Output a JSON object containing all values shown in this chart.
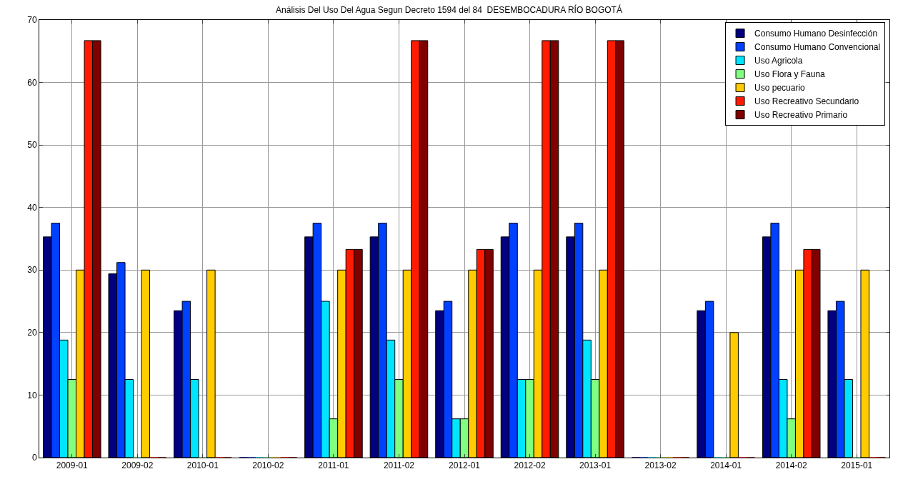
{
  "chart_data": {
    "type": "bar",
    "title": "Análisis Del Uso Del Agua Segun Decreto 1594 del 84  DESEMBOCADURA RÍO BOGOTÁ",
    "categories": [
      "2009-01",
      "2009-02",
      "2010-01",
      "2010-02",
      "2011-01",
      "2011-02",
      "2012-01",
      "2012-02",
      "2013-01",
      "2013-02",
      "2014-01",
      "2014-02",
      "2015-01"
    ],
    "series": [
      {
        "name": "Consumo Humano Desinfección",
        "color": "#000080",
        "values": [
          35.3,
          29.4,
          23.5,
          0,
          35.3,
          35.3,
          23.5,
          35.3,
          35.3,
          0,
          23.5,
          35.3,
          23.5
        ]
      },
      {
        "name": "Consumo Humano Convencional",
        "color": "#0040ff",
        "values": [
          37.5,
          31.2,
          25,
          0,
          37.5,
          37.5,
          25,
          37.5,
          37.5,
          0,
          25,
          37.5,
          25
        ]
      },
      {
        "name": "Uso Agricola",
        "color": "#00e5ff",
        "values": [
          18.8,
          12.5,
          12.5,
          0,
          25,
          18.8,
          6.2,
          12.5,
          18.8,
          0,
          0,
          12.5,
          12.5
        ]
      },
      {
        "name": "Uso Flora y Fauna",
        "color": "#80ff80",
        "values": [
          12.5,
          0,
          0,
          0,
          6.2,
          12.5,
          6.2,
          12.5,
          12.5,
          0,
          0,
          6.2,
          0
        ]
      },
      {
        "name": "Uso pecuario",
        "color": "#ffcc00",
        "values": [
          30,
          30,
          30,
          0,
          30,
          30,
          30,
          30,
          30,
          0,
          20,
          30,
          30
        ]
      },
      {
        "name": "Uso Recreativo Secundario",
        "color": "#ff1a00",
        "values": [
          66.7,
          0,
          0,
          0,
          33.3,
          66.7,
          33.3,
          66.7,
          66.7,
          0,
          0,
          33.3,
          0
        ]
      },
      {
        "name": "Uso Recreativo Primario",
        "color": "#800000",
        "values": [
          66.7,
          0,
          0,
          0,
          33.3,
          66.7,
          33.3,
          66.7,
          66.7,
          0,
          0,
          33.3,
          0
        ]
      }
    ],
    "ylim": [
      0,
      70
    ],
    "yticks": [
      0,
      10,
      20,
      30,
      40,
      50,
      60,
      70
    ],
    "grid": true,
    "legend": "top right"
  }
}
